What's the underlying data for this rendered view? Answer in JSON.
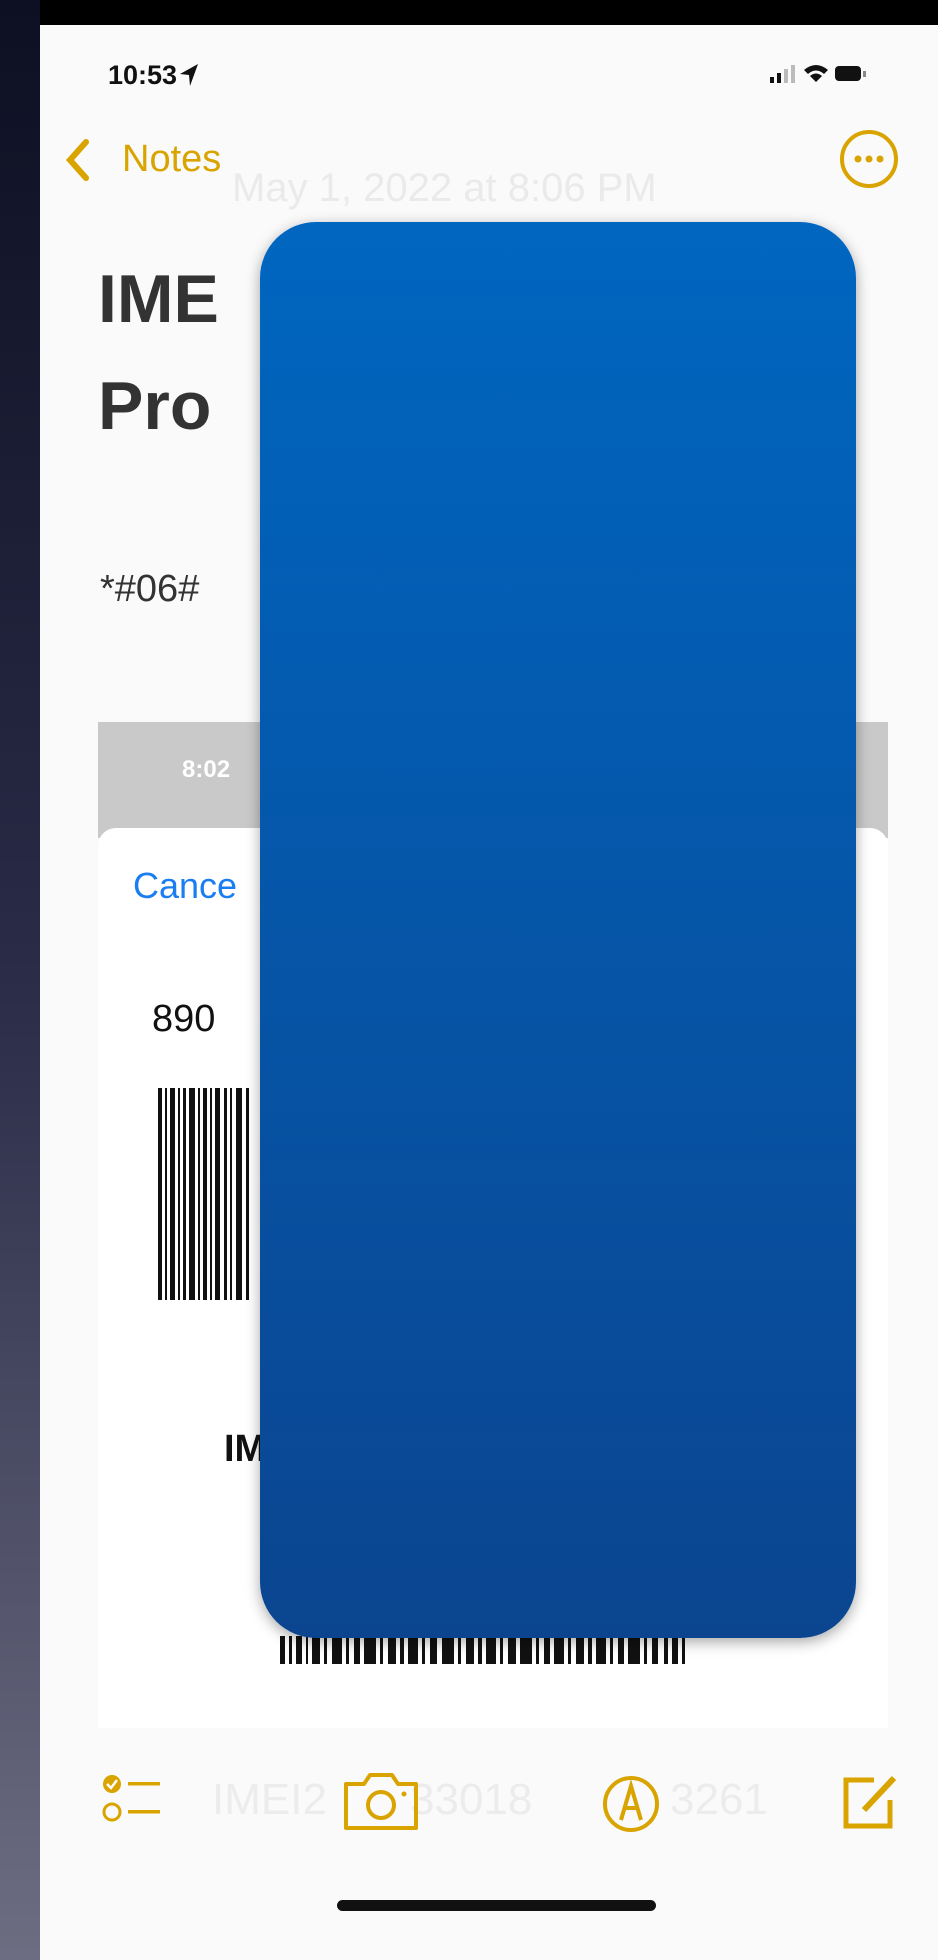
{
  "status_bar": {
    "time": "10:53"
  },
  "nav": {
    "back": "Notes",
    "date": "May 1, 2022 at 8:06 PM"
  },
  "note": {
    "title_lines": [
      "IME",
      "Pro"
    ],
    "code": "*#06#"
  },
  "embedded_screenshot": {
    "time": "8:02",
    "cancel": "Cance",
    "number": "890",
    "label": "IM"
  },
  "toolbar": {
    "faded_text": [
      "IMEI2",
      "33018",
      "3261"
    ]
  }
}
